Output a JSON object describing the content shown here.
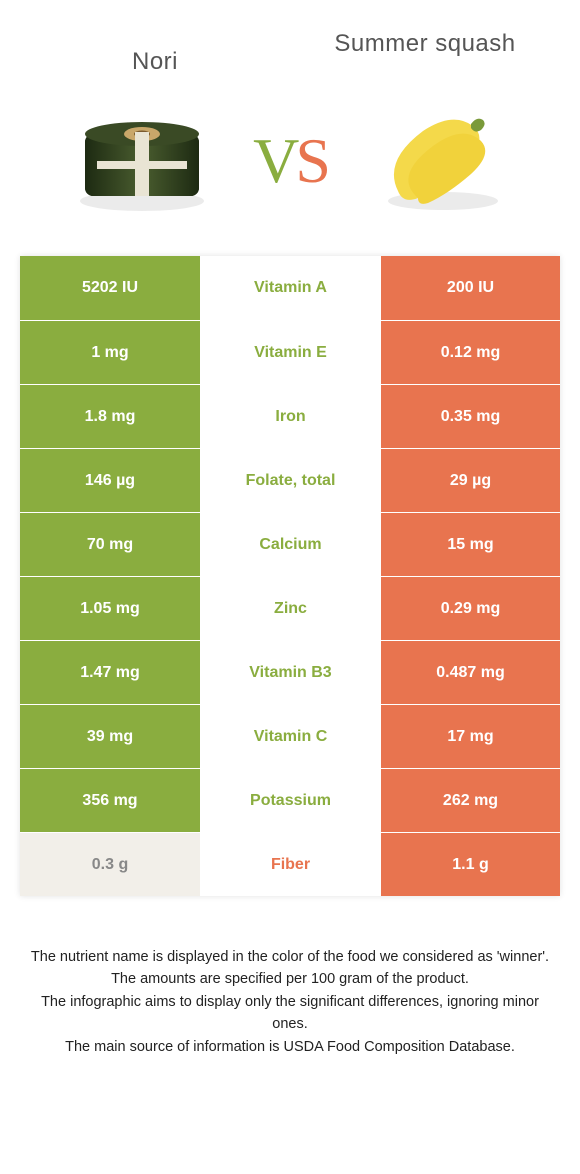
{
  "foods": {
    "left": {
      "name": "Nori",
      "color": "#8aad3f"
    },
    "right": {
      "name": "Summer squash",
      "color": "#e8744f"
    }
  },
  "neutral_color": "#f2efe9",
  "neutral_text": "#888888",
  "rows": [
    {
      "nutrient": "Vitamin A",
      "left": "5202 IU",
      "right": "200 IU",
      "winner": "left"
    },
    {
      "nutrient": "Vitamin E",
      "left": "1 mg",
      "right": "0.12 mg",
      "winner": "left"
    },
    {
      "nutrient": "Iron",
      "left": "1.8 mg",
      "right": "0.35 mg",
      "winner": "left"
    },
    {
      "nutrient": "Folate, total",
      "left": "146 µg",
      "right": "29 µg",
      "winner": "left"
    },
    {
      "nutrient": "Calcium",
      "left": "70 mg",
      "right": "15 mg",
      "winner": "left"
    },
    {
      "nutrient": "Zinc",
      "left": "1.05 mg",
      "right": "0.29 mg",
      "winner": "left"
    },
    {
      "nutrient": "Vitamin B3",
      "left": "1.47 mg",
      "right": "0.487 mg",
      "winner": "left"
    },
    {
      "nutrient": "Vitamin C",
      "left": "39 mg",
      "right": "17 mg",
      "winner": "left"
    },
    {
      "nutrient": "Potassium",
      "left": "356 mg",
      "right": "262 mg",
      "winner": "left"
    },
    {
      "nutrient": "Fiber",
      "left": "0.3 g",
      "right": "1.1 g",
      "winner": "right"
    }
  ],
  "disclaimer": [
    "The nutrient name is displayed in the color of the food we considered as 'winner'.",
    "The amounts are specified per 100 gram of the product.",
    "The infographic aims to display only the significant differences, ignoring minor ones.",
    "The main source of information is USDA Food Composition Database."
  ]
}
